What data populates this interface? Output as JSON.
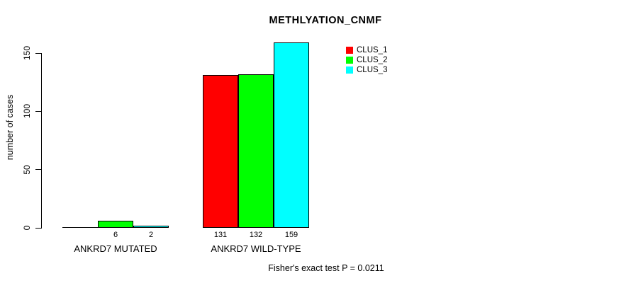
{
  "chart_data": {
    "type": "bar",
    "title": "METHLYATION_CNMF",
    "ylabel": "number of cases",
    "xlabel": "",
    "categories": [
      "ANKRD7 MUTATED",
      "ANKRD7 WILD-TYPE"
    ],
    "series": [
      {
        "name": "CLUS_1",
        "color": "#ff0000",
        "values": [
          0,
          131
        ]
      },
      {
        "name": "CLUS_2",
        "color": "#00ff00",
        "values": [
          6,
          132
        ]
      },
      {
        "name": "CLUS_3",
        "color": "#00ffff",
        "values": [
          2,
          159
        ]
      }
    ],
    "value_labels": [
      [
        "",
        "6",
        "2"
      ],
      [
        "131",
        "132",
        "159"
      ]
    ],
    "yticks": [
      0,
      50,
      100,
      150
    ],
    "ylim": [
      0,
      160
    ],
    "grid": false,
    "legend_position": "top-right",
    "legend_entries": [
      "CLUS_1",
      "CLUS_2",
      "CLUS_3"
    ],
    "annotation": "Fisher's exact test P = 0.0211",
    "axis_color": "#000000",
    "background_color": "#ffffff"
  }
}
